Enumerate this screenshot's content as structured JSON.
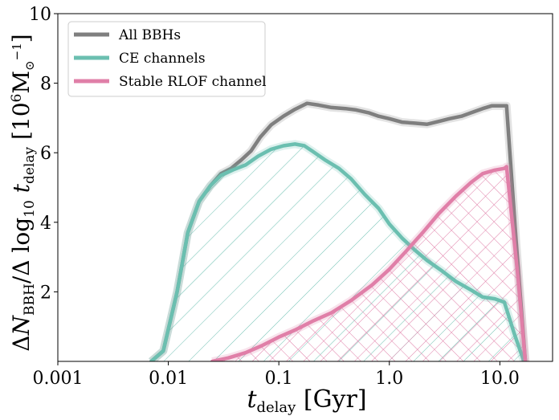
{
  "chart_data": {
    "type": "line",
    "xscale": "log",
    "xlim": [
      0.001,
      30
    ],
    "ylim": [
      0,
      10
    ],
    "grid": false,
    "legend_position": "top-left",
    "xlabel": "t_delay [Gyr]",
    "ylabel": "ΔN_BBH/Δlog10 t_delay [10^6 M⊙^-1]",
    "xticks": [
      {
        "value": 0.001,
        "label": "0.001"
      },
      {
        "value": 0.01,
        "label": "0.01"
      },
      {
        "value": 0.1,
        "label": "0.1"
      },
      {
        "value": 1.0,
        "label": "1.0"
      },
      {
        "value": 10.0,
        "label": "10.0"
      }
    ],
    "yticks": [
      {
        "value": 2,
        "label": "2"
      },
      {
        "value": 4,
        "label": "4"
      },
      {
        "value": 6,
        "label": "6"
      },
      {
        "value": 8,
        "label": "8"
      },
      {
        "value": 10,
        "label": "10"
      }
    ],
    "series": [
      {
        "name": "All BBHs",
        "color": "#7f7f7f",
        "hatch": "none",
        "points": [
          [
            0.007,
            0.0
          ],
          [
            0.009,
            0.3
          ],
          [
            0.012,
            2.0
          ],
          [
            0.015,
            3.7
          ],
          [
            0.019,
            4.6
          ],
          [
            0.024,
            5.05
          ],
          [
            0.03,
            5.4
          ],
          [
            0.037,
            5.55
          ],
          [
            0.046,
            5.8
          ],
          [
            0.056,
            6.05
          ],
          [
            0.068,
            6.45
          ],
          [
            0.085,
            6.8
          ],
          [
            0.11,
            7.05
          ],
          [
            0.14,
            7.25
          ],
          [
            0.18,
            7.42
          ],
          [
            0.23,
            7.37
          ],
          [
            0.3,
            7.3
          ],
          [
            0.4,
            7.27
          ],
          [
            0.5,
            7.23
          ],
          [
            0.65,
            7.15
          ],
          [
            0.8,
            7.05
          ],
          [
            1.0,
            6.98
          ],
          [
            1.3,
            6.88
          ],
          [
            1.7,
            6.85
          ],
          [
            2.2,
            6.82
          ],
          [
            2.8,
            6.9
          ],
          [
            3.5,
            6.98
          ],
          [
            4.5,
            7.05
          ],
          [
            5.5,
            7.15
          ],
          [
            7.0,
            7.27
          ],
          [
            8.5,
            7.35
          ],
          [
            10.0,
            7.35
          ],
          [
            11.5,
            7.35
          ],
          [
            14.0,
            3.5
          ],
          [
            17.0,
            0.0
          ]
        ]
      },
      {
        "name": "CE channels",
        "color": "#6bbfb0",
        "hatch": "diagonal",
        "points": [
          [
            0.007,
            0.0
          ],
          [
            0.009,
            0.3
          ],
          [
            0.012,
            2.0
          ],
          [
            0.015,
            3.7
          ],
          [
            0.019,
            4.6
          ],
          [
            0.024,
            5.05
          ],
          [
            0.03,
            5.35
          ],
          [
            0.038,
            5.5
          ],
          [
            0.05,
            5.65
          ],
          [
            0.065,
            5.9
          ],
          [
            0.085,
            6.1
          ],
          [
            0.11,
            6.2
          ],
          [
            0.14,
            6.25
          ],
          [
            0.17,
            6.2
          ],
          [
            0.2,
            6.05
          ],
          [
            0.26,
            5.8
          ],
          [
            0.35,
            5.55
          ],
          [
            0.45,
            5.25
          ],
          [
            0.6,
            4.8
          ],
          [
            0.8,
            4.4
          ],
          [
            1.0,
            3.95
          ],
          [
            1.3,
            3.55
          ],
          [
            1.7,
            3.2
          ],
          [
            2.2,
            2.9
          ],
          [
            3.0,
            2.6
          ],
          [
            4.0,
            2.3
          ],
          [
            5.5,
            2.05
          ],
          [
            7.0,
            1.85
          ],
          [
            9.0,
            1.8
          ],
          [
            11.0,
            1.7
          ],
          [
            13.5,
            0.8
          ],
          [
            16.5,
            0.0
          ]
        ]
      },
      {
        "name": "Stable RLOF channel",
        "color": "#e07fa8",
        "hatch": "cross",
        "points": [
          [
            0.025,
            0.0
          ],
          [
            0.035,
            0.1
          ],
          [
            0.05,
            0.25
          ],
          [
            0.07,
            0.45
          ],
          [
            0.1,
            0.7
          ],
          [
            0.14,
            0.9
          ],
          [
            0.2,
            1.15
          ],
          [
            0.3,
            1.4
          ],
          [
            0.45,
            1.75
          ],
          [
            0.7,
            2.2
          ],
          [
            1.0,
            2.65
          ],
          [
            1.4,
            3.15
          ],
          [
            2.0,
            3.7
          ],
          [
            2.8,
            4.25
          ],
          [
            4.0,
            4.75
          ],
          [
            5.5,
            5.15
          ],
          [
            7.0,
            5.4
          ],
          [
            9.0,
            5.5
          ],
          [
            11.0,
            5.55
          ],
          [
            11.5,
            5.6
          ],
          [
            14.5,
            2.5
          ],
          [
            17.0,
            0.0
          ]
        ]
      }
    ]
  }
}
